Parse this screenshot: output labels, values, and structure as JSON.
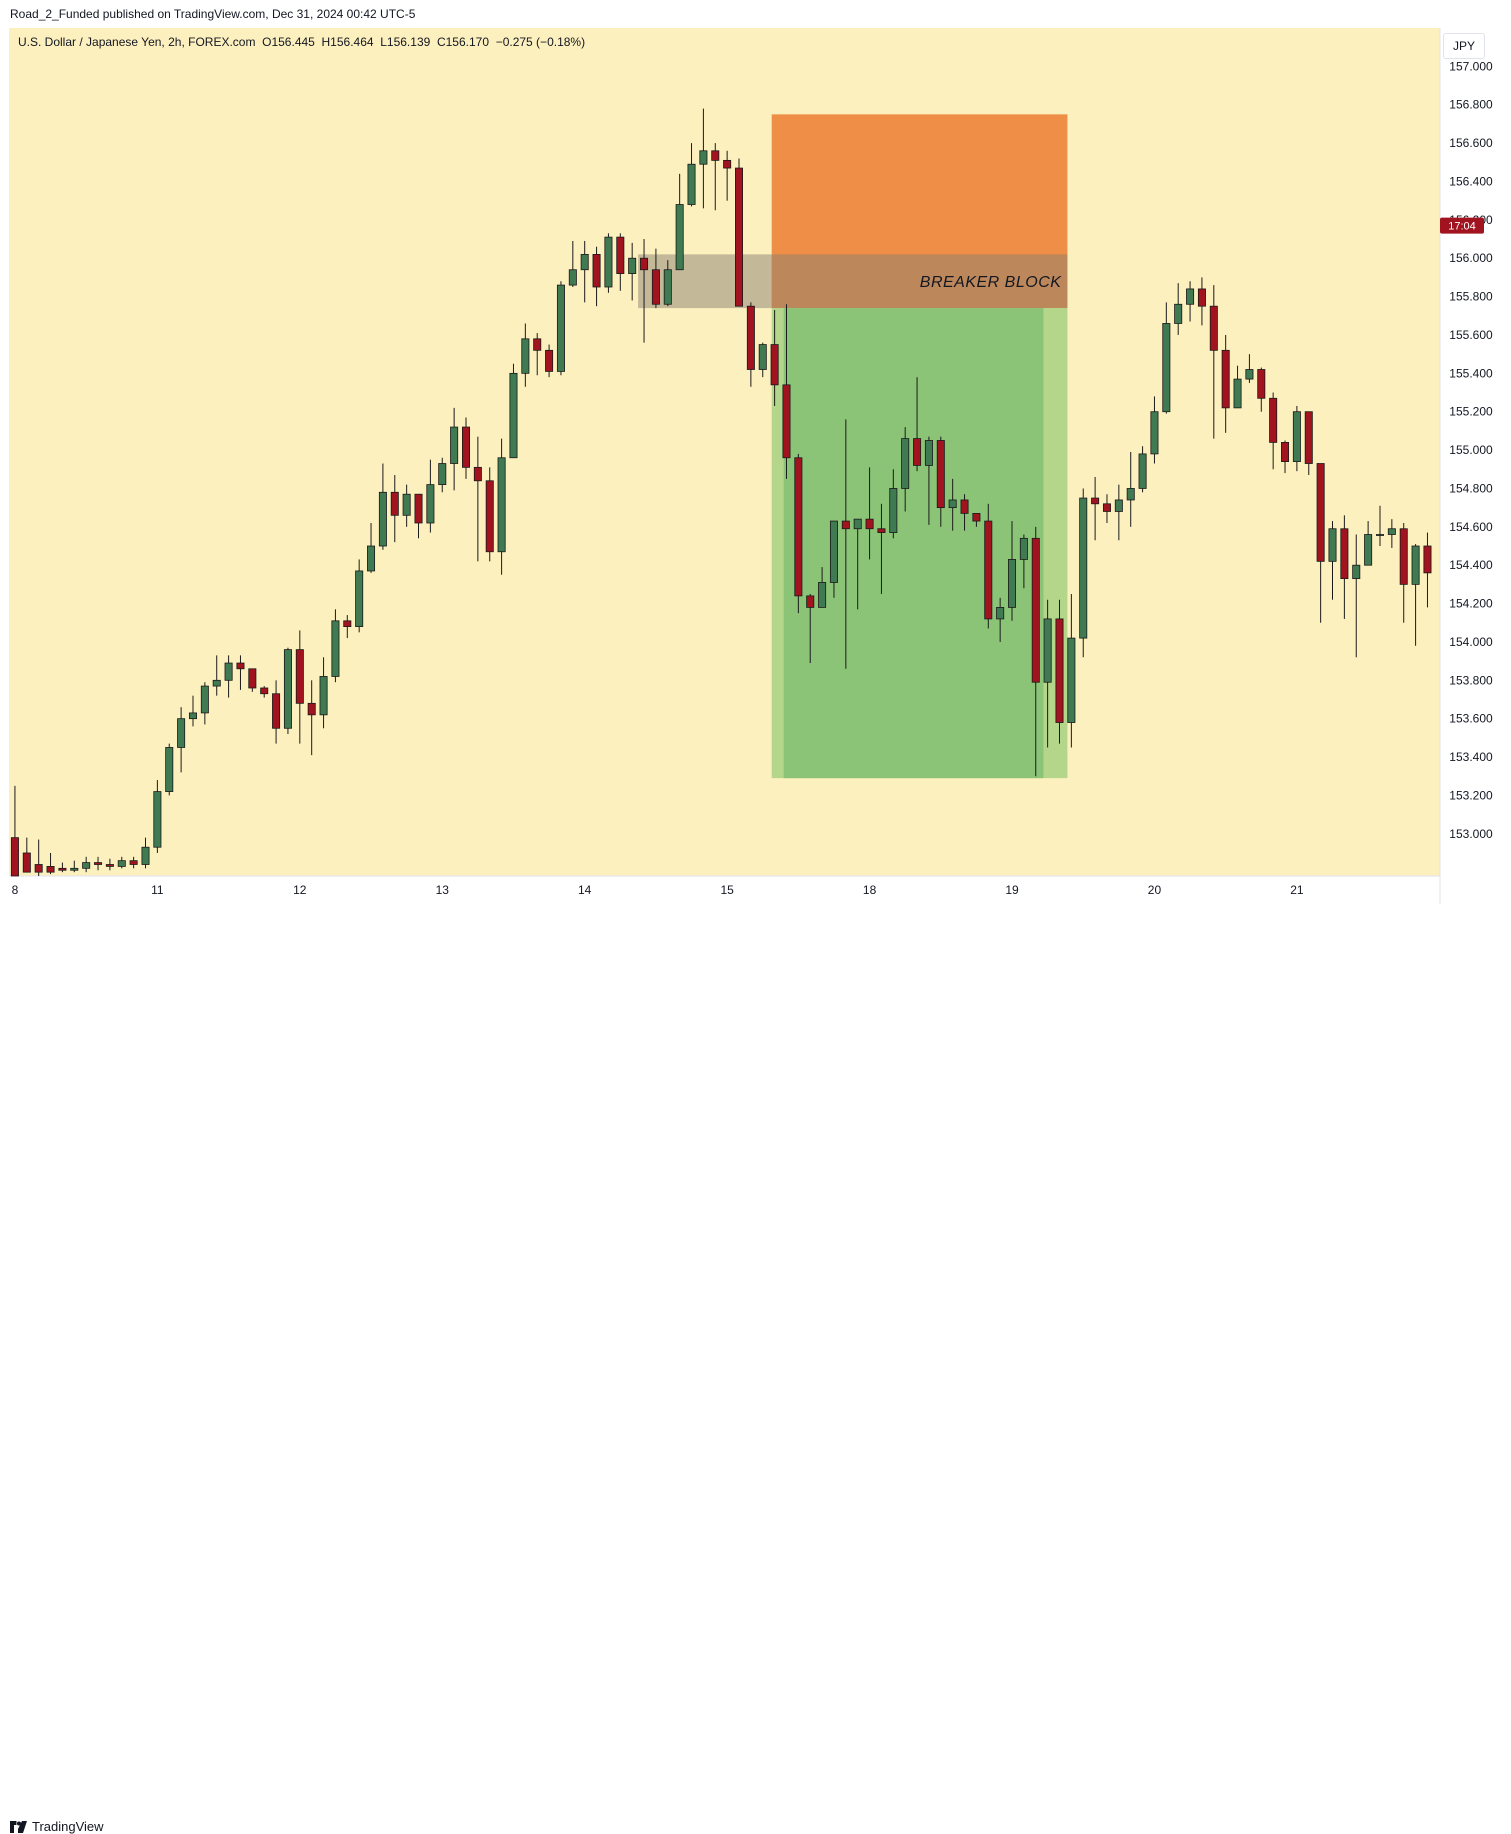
{
  "header": {
    "publisher": "Road_2_Funded published on TradingView.com, Dec 31, 2024 00:42 UTC-5"
  },
  "legend": {
    "symbol": "U.S. Dollar / Japanese Yen, 2h, FOREX.com",
    "open": "O156.445",
    "high": "H156.464",
    "low": "L156.139",
    "close": "C156.170",
    "change": "−0.275 (−0.18%)"
  },
  "currency_button": "JPY",
  "footer": {
    "brand": "TradingView"
  },
  "colors": {
    "background": "#fdf0bf",
    "bull": "#3f7a52",
    "bear": "#a0131f",
    "wick": "#1a1a1a",
    "stop_zone": "#ef8f47",
    "target_zone": "#8cc477",
    "target_zone_edge": "#b4d68a",
    "breaker_block": "#8a7f6f",
    "price_tag": "#a0131f"
  },
  "chart_data": {
    "type": "candlestick",
    "symbol": "USDJPY",
    "timeframe": "2h",
    "y_axis": {
      "min": 152.78,
      "max": 157.2,
      "ticks": [
        "157.000",
        "156.800",
        "156.600",
        "156.400",
        "156.200",
        "156.000",
        "155.800",
        "155.600",
        "155.400",
        "155.200",
        "155.000",
        "154.800",
        "154.600",
        "154.400",
        "154.200",
        "154.000",
        "153.800",
        "153.600",
        "153.400",
        "153.200",
        "153.000"
      ]
    },
    "x_axis": {
      "labels": [
        {
          "text": "8",
          "bar": 0.5
        },
        {
          "text": "11",
          "bar": 12.5
        },
        {
          "text": "12",
          "bar": 24.5
        },
        {
          "text": "13",
          "bar": 36.5
        },
        {
          "text": "14",
          "bar": 48.5
        },
        {
          "text": "15",
          "bar": 60.5
        },
        {
          "text": "18",
          "bar": 72.5
        },
        {
          "text": "19",
          "bar": 84.5
        },
        {
          "text": "20",
          "bar": 96.5
        },
        {
          "text": "21",
          "bar": 108.5
        }
      ]
    },
    "current_price_label": "17:04",
    "current_price": 156.17,
    "candles": [
      [
        152.98,
        152.78,
        153.25,
        152.78
      ],
      [
        152.9,
        152.8,
        152.98,
        152.8
      ],
      [
        152.84,
        152.8,
        152.97,
        152.78
      ],
      [
        152.83,
        152.8,
        152.9,
        152.79
      ],
      [
        152.82,
        152.81,
        152.85,
        152.8
      ],
      [
        152.81,
        152.82,
        152.86,
        152.8
      ],
      [
        152.82,
        152.85,
        152.88,
        152.8
      ],
      [
        152.85,
        152.84,
        152.88,
        152.81
      ],
      [
        152.84,
        152.83,
        152.87,
        152.81
      ],
      [
        152.83,
        152.86,
        152.88,
        152.82
      ],
      [
        152.86,
        152.84,
        152.88,
        152.82
      ],
      [
        152.84,
        152.93,
        152.98,
        152.82
      ],
      [
        152.93,
        153.22,
        153.28,
        152.9
      ],
      [
        153.22,
        153.45,
        153.47,
        153.2
      ],
      [
        153.45,
        153.6,
        153.66,
        153.32
      ],
      [
        153.6,
        153.63,
        153.72,
        153.56
      ],
      [
        153.63,
        153.77,
        153.79,
        153.57
      ],
      [
        153.77,
        153.8,
        153.93,
        153.72
      ],
      [
        153.8,
        153.89,
        153.93,
        153.71
      ],
      [
        153.89,
        153.86,
        153.93,
        153.75
      ],
      [
        153.86,
        153.76,
        153.86,
        153.74
      ],
      [
        153.76,
        153.73,
        153.77,
        153.71
      ],
      [
        153.73,
        153.55,
        153.8,
        153.47
      ],
      [
        153.55,
        153.96,
        153.97,
        153.52
      ],
      [
        153.96,
        153.68,
        154.06,
        153.47
      ],
      [
        153.68,
        153.62,
        153.8,
        153.41
      ],
      [
        153.62,
        153.82,
        153.92,
        153.55
      ],
      [
        153.82,
        154.11,
        154.17,
        153.79
      ],
      [
        154.11,
        154.08,
        154.14,
        154.02
      ],
      [
        154.08,
        154.37,
        154.43,
        154.05
      ],
      [
        154.37,
        154.5,
        154.62,
        154.36
      ],
      [
        154.5,
        154.78,
        154.93,
        154.48
      ],
      [
        154.78,
        154.66,
        154.87,
        154.52
      ],
      [
        154.66,
        154.77,
        154.82,
        154.6
      ],
      [
        154.77,
        154.62,
        154.77,
        154.54
      ],
      [
        154.62,
        154.82,
        154.95,
        154.57
      ],
      [
        154.82,
        154.93,
        154.96,
        154.78
      ],
      [
        154.93,
        155.12,
        155.22,
        154.79
      ],
      [
        155.12,
        154.91,
        155.17,
        154.85
      ],
      [
        154.91,
        154.84,
        155.07,
        154.42
      ],
      [
        154.84,
        154.47,
        154.91,
        154.42
      ],
      [
        154.47,
        154.96,
        155.06,
        154.35
      ],
      [
        154.96,
        155.4,
        155.45,
        154.96
      ],
      [
        155.4,
        155.58,
        155.66,
        155.33
      ],
      [
        155.58,
        155.52,
        155.61,
        155.39
      ],
      [
        155.52,
        155.41,
        155.55,
        155.38
      ],
      [
        155.41,
        155.86,
        155.88,
        155.39
      ],
      [
        155.86,
        155.94,
        156.09,
        155.85
      ],
      [
        155.94,
        156.02,
        156.09,
        155.77
      ],
      [
        156.02,
        155.85,
        156.06,
        155.75
      ],
      [
        155.85,
        156.11,
        156.13,
        155.82
      ],
      [
        156.11,
        155.92,
        156.13,
        155.83
      ],
      [
        155.92,
        156.0,
        156.08,
        155.78
      ],
      [
        156.0,
        155.94,
        156.1,
        155.56
      ],
      [
        155.94,
        155.76,
        156.05,
        155.74
      ],
      [
        155.76,
        155.94,
        155.99,
        155.75
      ],
      [
        155.94,
        156.28,
        156.44,
        155.94
      ],
      [
        156.28,
        156.49,
        156.6,
        156.27
      ],
      [
        156.49,
        156.56,
        156.78,
        156.26
      ],
      [
        156.56,
        156.51,
        156.6,
        156.25
      ],
      [
        156.51,
        156.47,
        156.56,
        156.3
      ],
      [
        156.47,
        155.75,
        156.52,
        155.75
      ]
    ],
    "candles_part2": [
      [
        155.75,
        155.42,
        155.77,
        155.33
      ],
      [
        155.42,
        155.55,
        155.56,
        155.38
      ],
      [
        155.55,
        155.34,
        155.73,
        155.23
      ],
      [
        155.34,
        154.96,
        155.76,
        154.85
      ],
      [
        154.96,
        154.24,
        154.98,
        154.15
      ],
      [
        154.24,
        154.18,
        154.25,
        153.89
      ],
      [
        154.18,
        154.31,
        154.39,
        154.18
      ],
      [
        154.31,
        154.63,
        154.63,
        154.23
      ],
      [
        154.63,
        154.59,
        155.16,
        153.86
      ],
      [
        154.59,
        154.64,
        154.64,
        154.17
      ],
      [
        154.64,
        154.59,
        154.91,
        154.43
      ],
      [
        154.59,
        154.57,
        154.72,
        154.25
      ],
      [
        154.57,
        154.8,
        154.9,
        154.54
      ],
      [
        154.8,
        155.06,
        155.12,
        154.68
      ],
      [
        155.06,
        154.92,
        155.38,
        154.89
      ],
      [
        154.92,
        155.05,
        155.07,
        154.61
      ],
      [
        155.05,
        154.7,
        155.07,
        154.6
      ],
      [
        154.7,
        154.74,
        154.85,
        154.58
      ],
      [
        154.74,
        154.67,
        154.77,
        154.58
      ],
      [
        154.67,
        154.63,
        154.67,
        154.6
      ],
      [
        154.63,
        154.12,
        154.72,
        154.07
      ],
      [
        154.12,
        154.18,
        154.23,
        154.0
      ],
      [
        154.18,
        154.43,
        154.63,
        154.11
      ],
      [
        154.43,
        154.54,
        154.56,
        154.28
      ],
      [
        154.54,
        153.79,
        154.6,
        153.3
      ],
      [
        153.79,
        154.12,
        154.22,
        153.45
      ],
      [
        154.12,
        153.58,
        154.22,
        153.47
      ],
      [
        153.58,
        154.02,
        154.25,
        153.45
      ],
      [
        154.02,
        154.75,
        154.8,
        153.92
      ],
      [
        154.75,
        154.72,
        154.86,
        154.53
      ],
      [
        154.72,
        154.68,
        154.77,
        154.62
      ],
      [
        154.68,
        154.74,
        154.82,
        154.53
      ],
      [
        154.74,
        154.8,
        154.99,
        154.6
      ],
      [
        154.8,
        154.98,
        155.02,
        154.78
      ],
      [
        154.98,
        155.2,
        155.28,
        154.93
      ],
      [
        155.2,
        155.66,
        155.77,
        155.19
      ],
      [
        155.66,
        155.76,
        155.87,
        155.6
      ],
      [
        155.76,
        155.84,
        155.88,
        155.67
      ],
      [
        155.84,
        155.75,
        155.9,
        155.65
      ],
      [
        155.75,
        155.52,
        155.86,
        155.06
      ],
      [
        155.52,
        155.22,
        155.6,
        155.09
      ],
      [
        155.22,
        155.37,
        155.44,
        155.22
      ],
      [
        155.37,
        155.42,
        155.5,
        155.35
      ],
      [
        155.42,
        155.27,
        155.43,
        155.2
      ],
      [
        155.27,
        155.04,
        155.3,
        154.9
      ],
      [
        155.04,
        154.94,
        155.05,
        154.88
      ],
      [
        154.94,
        155.2,
        155.23,
        154.89
      ],
      [
        155.2,
        154.93,
        155.2,
        154.87
      ],
      [
        154.93,
        154.42,
        154.93,
        154.1
      ],
      [
        154.42,
        154.59,
        154.63,
        154.22
      ],
      [
        154.59,
        154.33,
        154.66,
        154.12
      ],
      [
        154.33,
        154.4,
        154.56,
        153.92
      ],
      [
        154.4,
        154.56,
        154.63,
        154.42
      ],
      [
        154.56,
        154.56,
        154.71,
        154.5
      ],
      [
        154.56,
        154.59,
        154.64,
        154.49
      ],
      [
        154.59,
        154.3,
        154.62,
        154.1
      ],
      [
        154.3,
        154.5,
        154.51,
        153.98
      ],
      [
        154.5,
        154.36,
        154.57,
        154.18
      ]
    ],
    "position": {
      "breaker_block": {
        "label": "BREAKER BLOCK",
        "top": 156.02,
        "bottom": 155.74
      },
      "stop_zone": {
        "top": 156.75,
        "bottom": 155.74
      },
      "target_zone": {
        "top": 155.74,
        "bottom": 153.29
      }
    }
  }
}
